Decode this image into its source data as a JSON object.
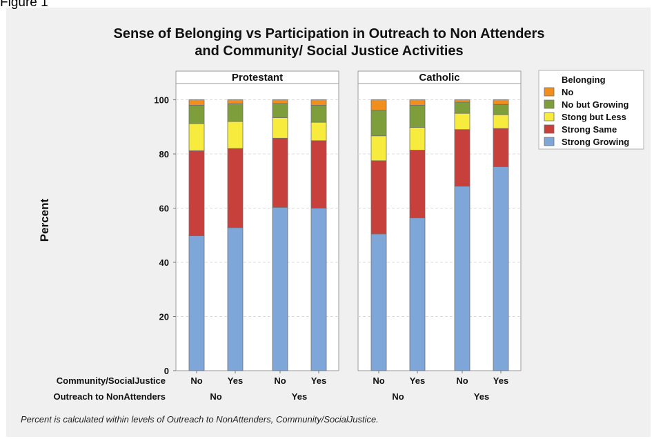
{
  "figure_label": "Figure 1",
  "footnote": "Percent is calculated within levels of Outreach to NonAttenders, Community/SocialJustice.",
  "colors": {
    "No": "#f28e1c",
    "No but Growing": "#7d9e3b",
    "Stong but Less": "#f7ec3e",
    "Strong Same": "#c8403c",
    "Strong Growing": "#7ea6d8"
  },
  "chart_data": {
    "type": "bar",
    "stacked": true,
    "title": "Sense of Belonging vs Participation in Outreach to Non Attenders",
    "subtitle": "and Community/ Social Justice Activities",
    "ylabel": "Percent",
    "ylim": [
      0,
      106
    ],
    "yticks": [
      0,
      20,
      40,
      60,
      80,
      100
    ],
    "grid": true,
    "legend_title": "Belonging",
    "legend_position": "right",
    "row_labels": [
      "Community/SocialJustice",
      "Outreach to NonAttenders"
    ],
    "categories": [
      "No",
      "Yes",
      "No",
      "Yes"
    ],
    "outer_categories": [
      "No",
      "Yes"
    ],
    "panels": [
      {
        "name": "Protestant",
        "series": [
          {
            "name": "Strong Growing",
            "values": [
              49.8,
              52.8,
              60.3,
              60.0
            ]
          },
          {
            "name": "Strong Same",
            "values": [
              31.4,
              29.2,
              25.5,
              24.9
            ]
          },
          {
            "name": "Stong but Less",
            "values": [
              10.0,
              10.0,
              7.6,
              6.8
            ]
          },
          {
            "name": "No but Growing",
            "values": [
              6.8,
              6.5,
              5.2,
              6.3
            ]
          },
          {
            "name": "No",
            "values": [
              2.0,
              1.5,
              1.4,
              2.0
            ]
          }
        ]
      },
      {
        "name": "Catholic",
        "series": [
          {
            "name": "Strong Growing",
            "values": [
              50.5,
              56.4,
              68.1,
              75.3
            ]
          },
          {
            "name": "Strong Same",
            "values": [
              27.0,
              25.0,
              20.9,
              14.1
            ]
          },
          {
            "name": "Stong but Less",
            "values": [
              9.2,
              8.4,
              6.0,
              5.1
            ]
          },
          {
            "name": "No but Growing",
            "values": [
              9.4,
              8.2,
              4.1,
              3.8
            ]
          },
          {
            "name": "No",
            "values": [
              3.9,
              2.0,
              0.9,
              1.7
            ]
          }
        ]
      }
    ]
  }
}
